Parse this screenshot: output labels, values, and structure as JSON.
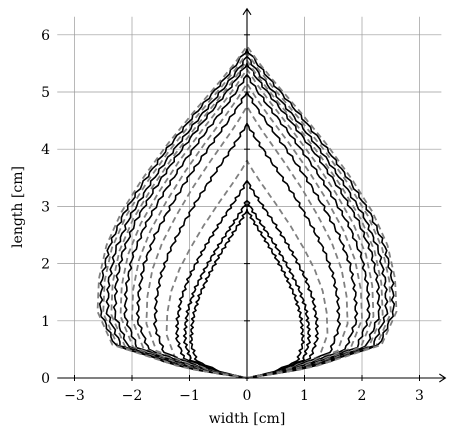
{
  "chart_data": {
    "type": "line",
    "xlabel": "width [cm]",
    "ylabel": "length [cm]",
    "xlim": [
      -3.3,
      3.45
    ],
    "ylim": [
      0,
      6.35
    ],
    "xticks": [
      -3,
      -2,
      -1,
      0,
      1,
      2,
      3
    ],
    "xtick_labels": [
      "−3",
      "−2",
      "−1",
      "0",
      "1",
      "2",
      "3"
    ],
    "yticks": [
      0,
      1,
      2,
      3,
      4,
      5,
      6
    ],
    "ytick_labels": [
      "0",
      "1",
      "2",
      "3",
      "4",
      "5",
      "6"
    ],
    "grid": true,
    "legend": "none",
    "colors": {
      "measured": "#000000",
      "model": "#808080"
    },
    "contour_shape": {
      "description_free_profile": true,
      "y_over_height": [
        0,
        0.03,
        0.1,
        0.2,
        0.3,
        0.4,
        0.5,
        0.6,
        0.7,
        0.8,
        0.9,
        0.95,
        1.0
      ],
      "halfwidth_over_max": [
        0,
        0.42,
        0.9,
        1.0,
        0.99,
        0.94,
        0.84,
        0.7,
        0.54,
        0.36,
        0.17,
        0.08,
        0
      ]
    },
    "series": [
      {
        "kind": "measured",
        "tip": 2.95,
        "max_half_width": 0.97
      },
      {
        "kind": "measured",
        "tip": 3.1,
        "max_half_width": 1.08
      },
      {
        "kind": "measured",
        "tip": 3.45,
        "max_half_width": 1.22
      },
      {
        "kind": "model",
        "tip": 3.8,
        "max_half_width": 1.4
      },
      {
        "kind": "measured",
        "tip": 4.45,
        "max_half_width": 1.6
      },
      {
        "kind": "model",
        "tip": 4.75,
        "max_half_width": 1.75
      },
      {
        "kind": "measured",
        "tip": 5.0,
        "max_half_width": 1.9
      },
      {
        "kind": "model",
        "tip": 5.15,
        "max_half_width": 2.0
      },
      {
        "kind": "measured",
        "tip": 5.3,
        "max_half_width": 2.12
      },
      {
        "kind": "model",
        "tip": 5.4,
        "max_half_width": 2.2
      },
      {
        "kind": "measured",
        "tip": 5.5,
        "max_half_width": 2.3
      },
      {
        "kind": "model",
        "tip": 5.55,
        "max_half_width": 2.36
      },
      {
        "kind": "measured",
        "tip": 5.62,
        "max_half_width": 2.43
      },
      {
        "kind": "model",
        "tip": 5.68,
        "max_half_width": 2.5
      },
      {
        "kind": "measured",
        "tip": 5.75,
        "max_half_width": 2.55
      },
      {
        "kind": "model",
        "tip": 5.8,
        "max_half_width": 2.6
      }
    ]
  }
}
